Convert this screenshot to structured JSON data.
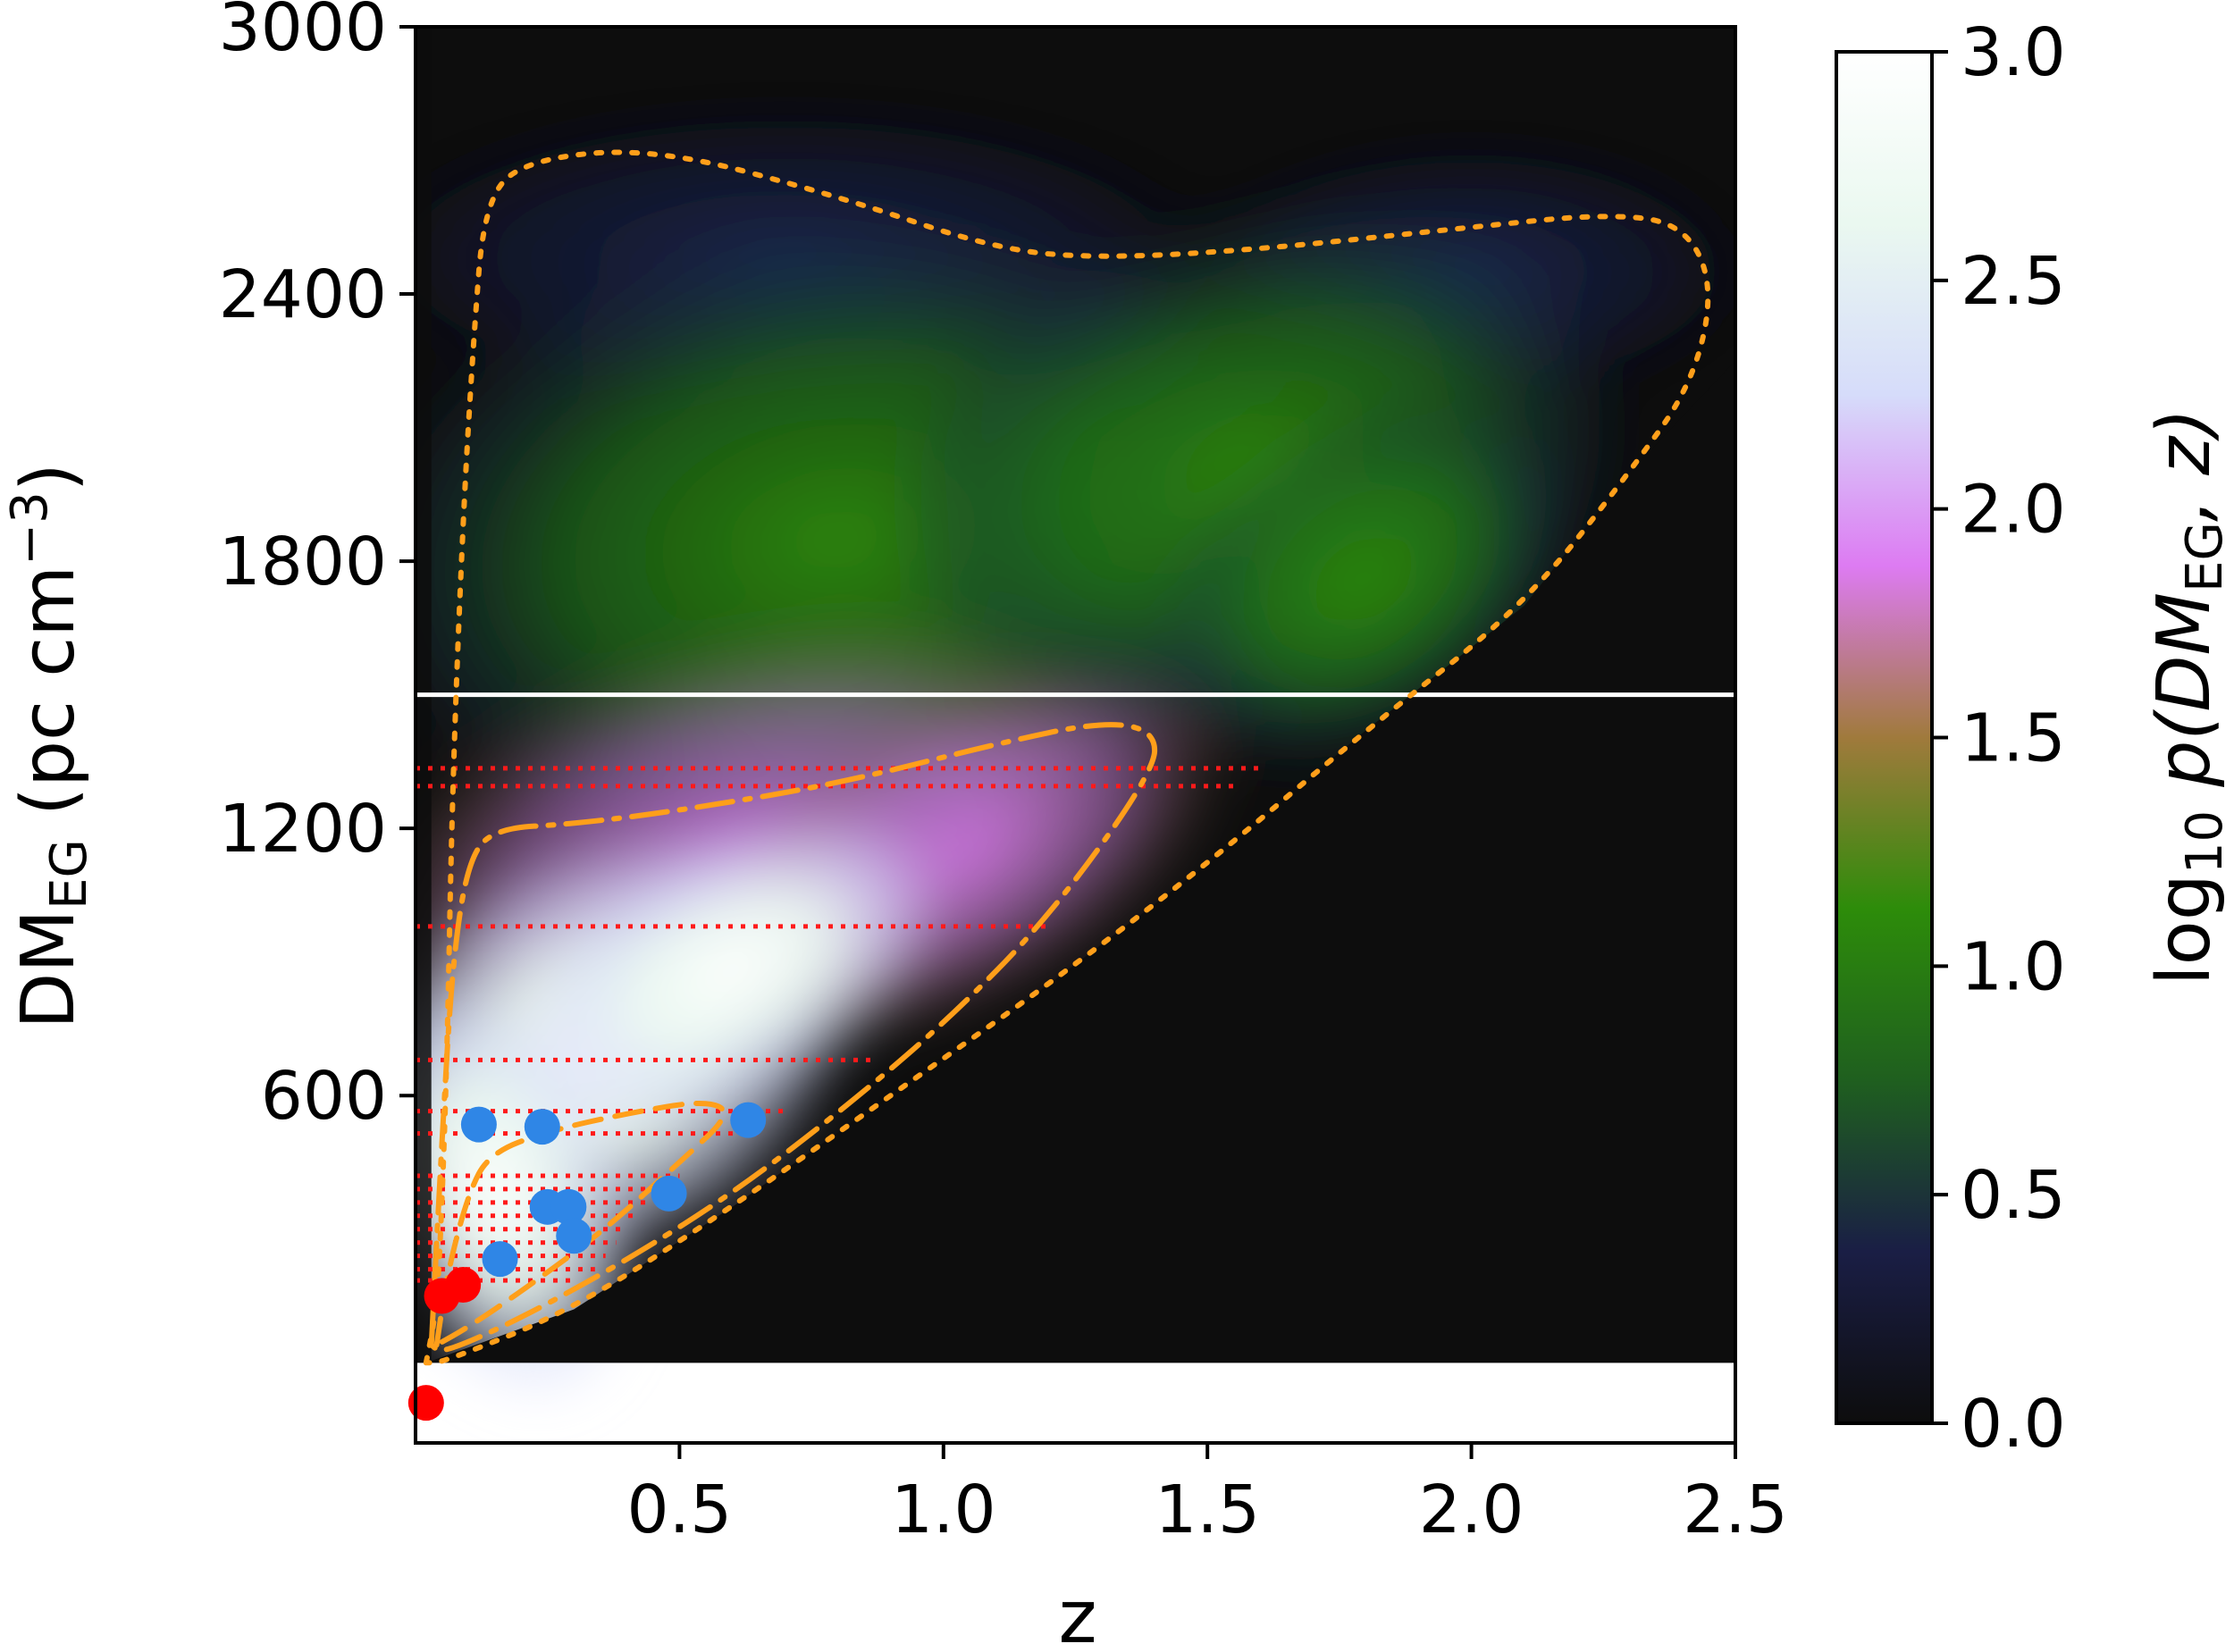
{
  "chart_data": {
    "type": "heatmap",
    "title": "",
    "xlabel": "z",
    "ylabel": {
      "main": "DM",
      "sub": "EG",
      "unit_open": " (pc cm",
      "unit_sup": "−3",
      "unit_close": ")"
    },
    "xlim": [
      0.0,
      2.5
    ],
    "ylim": [
      -180,
      3000
    ],
    "x_ticks": [
      0.5,
      1.0,
      1.5,
      2.0,
      2.5
    ],
    "x_tick_labels": [
      "0.5",
      "1.0",
      "1.5",
      "2.0",
      "2.5"
    ],
    "y_ticks": [
      600,
      1200,
      1800,
      2400,
      3000
    ],
    "y_tick_labels": [
      "600",
      "1200",
      "1800",
      "2400",
      "3000"
    ],
    "colorbar": {
      "label": {
        "prefix": "log",
        "sub": "10",
        "rest": " p(DM",
        "sub2": "EG",
        "end": ", z)"
      },
      "range": [
        0.0,
        3.0
      ],
      "ticks": [
        0.0,
        0.5,
        1.0,
        1.5,
        2.0,
        2.5,
        3.0
      ],
      "tick_labels": [
        "0.0",
        "0.5",
        "1.0",
        "1.5",
        "2.0",
        "2.5",
        "3.0"
      ],
      "colormap": "cubehelix",
      "stops": [
        "#0d0d0d",
        "#1a1e45",
        "#1f5f1f",
        "#2d8c0a",
        "#a07a3c",
        "#dd7bf2",
        "#d6dcfa",
        "#eaf8f0",
        "#ffffff"
      ]
    },
    "colors": {
      "contour": "#ff9f1a",
      "localized_frb": "#2f86e6",
      "unlocalized_frb": "#ff0000",
      "dm_cut": "#ffffff",
      "frb_dm_lines": "#ff1a1a"
    },
    "dm_cut_line": {
      "dm": 1500
    },
    "contours": [
      {
        "style": "dotted",
        "points": [
          [
            0.02,
            0
          ],
          [
            0.04,
            120
          ],
          [
            0.05,
            350
          ],
          [
            0.06,
            700
          ],
          [
            0.07,
            1300
          ],
          [
            0.09,
            1900
          ],
          [
            0.11,
            2300
          ],
          [
            0.13,
            2600
          ],
          [
            0.2,
            2700
          ],
          [
            0.45,
            2730
          ],
          [
            0.8,
            2620
          ],
          [
            1.1,
            2500
          ],
          [
            1.3,
            2480
          ],
          [
            1.6,
            2500
          ],
          [
            2.0,
            2550
          ],
          [
            2.25,
            2580
          ],
          [
            2.4,
            2560
          ],
          [
            2.46,
            2420
          ],
          [
            2.42,
            2200
          ],
          [
            2.3,
            2000
          ],
          [
            2.1,
            1700
          ],
          [
            1.8,
            1420
          ],
          [
            1.5,
            1120
          ],
          [
            1.2,
            850
          ],
          [
            0.9,
            600
          ],
          [
            0.6,
            350
          ],
          [
            0.3,
            120
          ],
          [
            0.05,
            0
          ],
          [
            0.02,
            0
          ]
        ]
      },
      {
        "style": "dashdot",
        "points": [
          [
            0.03,
            40
          ],
          [
            0.05,
            500
          ],
          [
            0.07,
            900
          ],
          [
            0.1,
            1130
          ],
          [
            0.15,
            1200
          ],
          [
            0.3,
            1210
          ],
          [
            0.5,
            1240
          ],
          [
            0.8,
            1300
          ],
          [
            1.1,
            1390
          ],
          [
            1.3,
            1440
          ],
          [
            1.4,
            1420
          ],
          [
            1.4,
            1330
          ],
          [
            1.2,
            1000
          ],
          [
            1.0,
            760
          ],
          [
            0.8,
            560
          ],
          [
            0.6,
            380
          ],
          [
            0.4,
            230
          ],
          [
            0.2,
            100
          ],
          [
            0.05,
            20
          ],
          [
            0.03,
            40
          ]
        ]
      },
      {
        "style": "dashed",
        "points": [
          [
            0.04,
            40
          ],
          [
            0.06,
            200
          ],
          [
            0.1,
            380
          ],
          [
            0.14,
            470
          ],
          [
            0.25,
            520
          ],
          [
            0.4,
            560
          ],
          [
            0.55,
            590
          ],
          [
            0.6,
            560
          ],
          [
            0.5,
            450
          ],
          [
            0.35,
            290
          ],
          [
            0.2,
            160
          ],
          [
            0.1,
            80
          ],
          [
            0.04,
            40
          ]
        ]
      }
    ],
    "series": [
      {
        "name": "",
        "type": "scatter",
        "color": "#2f86e6",
        "x": [
          0.12,
          0.24,
          0.63,
          0.48,
          0.25,
          0.29,
          0.16,
          0.3
        ],
        "y": [
          535,
          530,
          545,
          380,
          350,
          350,
          233,
          285
        ]
      },
      {
        "name": "",
        "type": "scatter",
        "color": "#ff0000",
        "x": [
          0.05,
          0.09,
          0.02
        ],
        "y": [
          150,
          175,
          -90
        ]
      }
    ],
    "frb_dm_lines": [
      {
        "dm": 1335,
        "z_max": 1.6
      },
      {
        "dm": 1295,
        "z_max": 1.55
      },
      {
        "dm": 980,
        "z_max": 1.2
      },
      {
        "dm": 680,
        "z_max": 0.87
      },
      {
        "dm": 565,
        "z_max": 0.7
      },
      {
        "dm": 515,
        "z_max": 0.66
      },
      {
        "dm": 420,
        "z_max": 0.5
      },
      {
        "dm": 390,
        "z_max": 0.48
      },
      {
        "dm": 360,
        "z_max": 0.45
      },
      {
        "dm": 330,
        "z_max": 0.42
      },
      {
        "dm": 300,
        "z_max": 0.4
      },
      {
        "dm": 270,
        "z_max": 0.38
      },
      {
        "dm": 240,
        "z_max": 0.36
      },
      {
        "dm": 210,
        "z_max": 0.34
      },
      {
        "dm": 185,
        "z_max": 0.3
      }
    ]
  }
}
